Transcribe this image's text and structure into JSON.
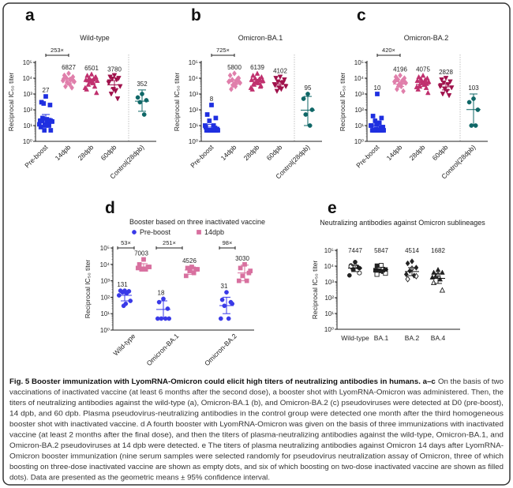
{
  "figure_caption": {
    "heading": "Fig. 5 Booster immunization with LyomRNA-Omicron could elicit high titers of neutralizing antibodies in humans. a–c",
    "lines": [
      "On the basis of two",
      "vaccinations of inactivated vaccine (at least 6 months after the second dose), a booster shot with LyomRNA-Omicron was administered. Then, the",
      "titers of neutralizing antibodies against the wild-type (a), Omicron-BA.1 (b), and Omicron-BA.2 (c) pseudoviruses were detected at D0 (pre-boost),",
      "14 dpb, and 60 dpb. Plasma pseudovirus-neutralizing antibodies in the control group were detected one month after the third homogeneous",
      "booster shot with inactivated vaccine. d A fourth booster with LyomRNA-Omicron was given on the basis of three immunizations with inactivated",
      "vaccine (at least 2 months after the final dose), and then the titers of plasma-neutralizing antibodies against the wild-type, Omicron-BA.1, and",
      "Omicron-BA.2 pseudoviruses at 14 dpb were detected. e The titers of plasma neutralizing antibodies against Omicron 14 days after LyomRNA-",
      "Omicron booster immunization (nine serum samples were selected randomly for pseudovirus neutralization assay of Omicron, three of which",
      "boosting on three-dose inactivated vaccine are shown as empty dots, and six of which boosting on two-dose inactivated vaccine are shown as filled",
      "dots). Data are presented as the geometric means ± 95% confidence interval."
    ]
  },
  "chart_data": [
    {
      "panel": "a",
      "type": "scatter",
      "title": "Wild-type",
      "ylabel": "Reciprocal IC₅₀ titer",
      "yscale": "log",
      "ylim": [
        1,
        100000
      ],
      "y_tick_labels": [
        "10⁰",
        "10¹",
        "10²",
        "10³",
        "10⁴",
        "10⁵"
      ],
      "fold_change": {
        "label": "253×",
        "between": [
          "Pre-boost",
          "14dpb"
        ]
      },
      "groups": [
        {
          "label": "Pre-boost",
          "mean": 27,
          "ci": [
            15,
            50
          ],
          "color": "#1f2fe0",
          "marker": "square",
          "values": [
            700,
            300,
            200,
            250,
            15,
            20,
            18,
            12,
            25,
            30,
            10,
            8,
            5,
            5,
            15,
            20,
            22,
            12,
            18,
            10
          ]
        },
        {
          "label": "14dpb",
          "mean": 6827,
          "ci": [
            5000,
            9500
          ],
          "color": "#e07fab",
          "marker": "diamond",
          "values": [
            20000,
            15000,
            12000,
            10000,
            8000,
            7000,
            6000,
            5000,
            4000,
            3000,
            2500,
            9000,
            6500,
            5500,
            8500
          ]
        },
        {
          "label": "28dpb",
          "mean": 6501,
          "ci": [
            4500,
            9000
          ],
          "color": "#c0306e",
          "marker": "triangle",
          "values": [
            18000,
            15000,
            12000,
            10000,
            9000,
            8000,
            7000,
            6000,
            5000,
            4000,
            3000,
            2000,
            1200,
            6500,
            5500,
            7500,
            11000,
            2500
          ]
        },
        {
          "label": "60dpb",
          "mean": 3780,
          "ci": [
            2200,
            7000
          ],
          "color": "#a0124c",
          "marker": "invtriangle",
          "values": [
            15000,
            12000,
            10000,
            9000,
            8000,
            5000,
            3000,
            2000,
            1500,
            1000,
            500,
            6000
          ]
        },
        {
          "label": "Control(28dpb)",
          "mean": 352,
          "ci": [
            80,
            1800
          ],
          "color": "#0f6767",
          "marker": "circle",
          "values": [
            1000,
            600,
            400,
            300,
            50
          ]
        }
      ]
    },
    {
      "panel": "b",
      "type": "scatter",
      "title": "Omicron-BA.1",
      "ylabel": "Reciprocal IC₅₀ titer",
      "yscale": "log",
      "ylim": [
        1,
        100000
      ],
      "y_tick_labels": [
        "10⁰",
        "10¹",
        "10²",
        "10³",
        "10⁴",
        "10⁵"
      ],
      "fold_change": {
        "label": "725×",
        "between": [
          "Pre-boost",
          "14dpb"
        ]
      },
      "groups": [
        {
          "label": "Pre-boost",
          "mean": 8,
          "ci": [
            5,
            12
          ],
          "color": "#1f2fe0",
          "marker": "square",
          "values": [
            200,
            50,
            30,
            20,
            10,
            8,
            6,
            5,
            5,
            5,
            5,
            5,
            5,
            5,
            5,
            5,
            7,
            10,
            5,
            5
          ]
        },
        {
          "label": "14dpb",
          "mean": 5800,
          "ci": [
            4000,
            8000
          ],
          "color": "#e07fab",
          "marker": "diamond",
          "values": [
            20000,
            15000,
            10000,
            8000,
            7000,
            6000,
            5000,
            4000,
            3000,
            2000,
            9000,
            6500,
            5500,
            3500,
            4500
          ]
        },
        {
          "label": "28dpb",
          "mean": 6139,
          "ci": [
            4500,
            8500
          ],
          "color": "#c0306e",
          "marker": "triangle",
          "values": [
            20000,
            15000,
            12000,
            10000,
            9000,
            8000,
            7000,
            6000,
            5000,
            4000,
            3000,
            2000,
            6500,
            5500,
            7500,
            4500,
            3500,
            2500
          ]
        },
        {
          "label": "60dpb",
          "mean": 4102,
          "ci": [
            2800,
            6000
          ],
          "color": "#a0124c",
          "marker": "invtriangle",
          "values": [
            12000,
            10000,
            8000,
            6000,
            5000,
            4000,
            3000,
            2500,
            2000,
            1500,
            5500,
            3500
          ]
        },
        {
          "label": "Control(28dpb)",
          "mean": 95,
          "ci": [
            10,
            700
          ],
          "color": "#0f6767",
          "marker": "circle",
          "values": [
            1000,
            500,
            100,
            50,
            10
          ]
        }
      ]
    },
    {
      "panel": "c",
      "type": "scatter",
      "title": "Omicron-BA.2",
      "ylabel": "Reciprocal IC₅₀ titer",
      "yscale": "log",
      "ylim": [
        1,
        100000
      ],
      "y_tick_labels": [
        "10⁰",
        "10¹",
        "10²",
        "10³",
        "10⁴",
        "10⁵"
      ],
      "fold_change": {
        "label": "420×",
        "between": [
          "Pre-boost",
          "14dpb"
        ]
      },
      "groups": [
        {
          "label": "Pre-boost",
          "mean": 10,
          "ci": [
            6,
            16
          ],
          "color": "#1f2fe0",
          "marker": "square",
          "values": [
            1000,
            40,
            30,
            20,
            15,
            10,
            8,
            6,
            5,
            5,
            5,
            5,
            5,
            5,
            5,
            5,
            7,
            10,
            5,
            12
          ]
        },
        {
          "label": "14dpb",
          "mean": 4196,
          "ci": [
            3000,
            6000
          ],
          "color": "#e07fab",
          "marker": "diamond",
          "values": [
            15000,
            12000,
            10000,
            8000,
            7000,
            6000,
            5000,
            4000,
            3000,
            2000,
            1500,
            6500,
            5500,
            3500,
            4500
          ]
        },
        {
          "label": "28dpb",
          "mean": 4075,
          "ci": [
            3000,
            6000
          ],
          "color": "#c0306e",
          "marker": "triangle",
          "values": [
            15000,
            12000,
            10000,
            9000,
            8000,
            7000,
            6000,
            5000,
            4000,
            3000,
            2500,
            2000,
            1200,
            6500,
            5500,
            3500,
            4500,
            2800
          ]
        },
        {
          "label": "60dpb",
          "mean": 2828,
          "ci": [
            1800,
            4500
          ],
          "color": "#a0124c",
          "marker": "invtriangle",
          "values": [
            10000,
            8000,
            6000,
            5000,
            4000,
            3000,
            2500,
            2000,
            1500,
            1000,
            800,
            3500
          ]
        },
        {
          "label": "Control(28dpb)",
          "mean": 103,
          "ci": [
            10,
            1000
          ],
          "color": "#0f6767",
          "marker": "circle",
          "values": [
            500,
            300,
            100,
            10,
            10
          ]
        }
      ]
    },
    {
      "panel": "d",
      "type": "scatter",
      "title": "Booster based on three inactivated vaccine",
      "ylabel": "Reciprocal IC₅₀ titer",
      "yscale": "log",
      "ylim": [
        1,
        100000
      ],
      "y_tick_labels": [
        "10⁰",
        "10¹",
        "10²",
        "10³",
        "10⁴",
        "10⁵"
      ],
      "legend": {
        "placement": "top",
        "entries": [
          {
            "label": "Pre-boost",
            "color": "#3a3ae8",
            "marker": "circle"
          },
          {
            "label": "14dpb",
            "color": "#d8709f",
            "marker": "square"
          }
        ]
      },
      "categories": [
        "Wild-type",
        "Omicron-BA.1",
        "Omicron-BA.2"
      ],
      "fold_changes": [
        "53×",
        "251×",
        "98×"
      ],
      "groups": [
        {
          "category": "Wild-type",
          "series": "Pre-boost",
          "mean": 131,
          "ci": [
            60,
            250
          ],
          "color": "#3a3ae8",
          "marker": "circle",
          "values": [
            250,
            250,
            230,
            200,
            180,
            130,
            60,
            30,
            40
          ]
        },
        {
          "category": "Wild-type",
          "series": "14dpb",
          "mean": 7003,
          "ci": [
            4500,
            11000
          ],
          "color": "#d8709f",
          "marker": "square",
          "values": [
            20000,
            10000,
            7000,
            5000,
            5000,
            6000,
            7000
          ]
        },
        {
          "category": "Omicron-BA.1",
          "series": "Pre-boost",
          "mean": 18,
          "ci": [
            5,
            60
          ],
          "color": "#3a3ae8",
          "marker": "circle",
          "values": [
            80,
            50,
            20,
            5,
            5,
            5,
            5
          ]
        },
        {
          "category": "Omicron-BA.1",
          "series": "14dpb",
          "mean": 4526,
          "ci": [
            2500,
            7000
          ],
          "color": "#d8709f",
          "marker": "square",
          "values": [
            7000,
            6000,
            5000,
            4000,
            3000,
            2000,
            5000
          ]
        },
        {
          "category": "Omicron-BA.2",
          "series": "Pre-boost",
          "mean": 31,
          "ci": [
            10,
            100
          ],
          "color": "#3a3ae8",
          "marker": "circle",
          "values": [
            200,
            70,
            50,
            30,
            5,
            5,
            40
          ]
        },
        {
          "category": "Omicron-BA.2",
          "series": "14dpb",
          "mean": 3030,
          "ci": [
            1000,
            9000
          ],
          "color": "#d8709f",
          "marker": "square",
          "values": [
            10000,
            6000,
            3000,
            2000,
            1000,
            1000,
            4000
          ]
        }
      ]
    },
    {
      "panel": "e",
      "type": "scatter",
      "title": "Neutralizing antibodies against Omicron sublineages",
      "ylabel": "Reciprocal IC₅₀ titer",
      "yscale": "log",
      "ylim": [
        1,
        100000
      ],
      "y_tick_labels": [
        "10⁰",
        "10¹",
        "10²",
        "10³",
        "10⁴",
        "10⁵"
      ],
      "groups": [
        {
          "label": "Wild-type",
          "mean": 7447,
          "ci": [
            4500,
            11000
          ],
          "color": "#222222",
          "marker": "circle",
          "filled": [
            18000,
            11000,
            7500,
            6000,
            9000,
            2600
          ],
          "empty": [
            10000,
            9500,
            3700
          ]
        },
        {
          "label": "BA.1",
          "mean": 5847,
          "ci": [
            4200,
            8500
          ],
          "color": "#222222",
          "marker": "square",
          "filled": [
            11000,
            10500,
            6000,
            5000,
            4500,
            5500
          ],
          "empty": [
            11000,
            3000,
            3500
          ]
        },
        {
          "label": "BA.2",
          "mean": 4514,
          "ci": [
            2500,
            8000
          ],
          "color": "#222222",
          "marker": "diamond",
          "filled": [
            20000,
            15000,
            8000,
            5000,
            2500,
            3000
          ],
          "empty": [
            7000,
            1500,
            2300
          ]
        },
        {
          "label": "BA.4",
          "mean": 1682,
          "ci": [
            800,
            3500
          ],
          "color": "#222222",
          "marker": "triangle",
          "filled": [
            6000,
            4000,
            4000,
            2500,
            1500,
            2000
          ],
          "empty": [
            3000,
            900,
            300
          ]
        }
      ]
    }
  ]
}
